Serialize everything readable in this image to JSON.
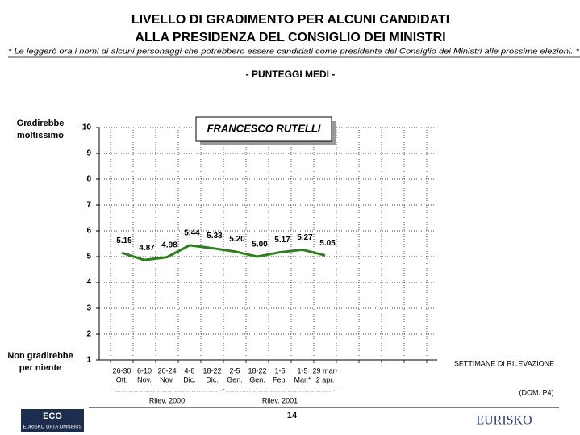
{
  "chart_data": {
    "type": "line",
    "title": [
      "LIVELLO DI GRADIMENTO PER ALCUNI CANDIDATI",
      "ALLA PRESIDENZA DEL CONSIGLIO DEI MINISTRI"
    ],
    "note": "* Le leggerò ora i nomi di alcuni personaggi che potrebbero essere candidati come presidente del Consiglio dei Ministri alle prossime elezioni. *",
    "subtitle": "- PUNTEGGI MEDI -",
    "y_top_label": [
      "Gradirebbe",
      "moltissimo"
    ],
    "y_bottom_label": [
      "Non gradirebbe",
      "per niente"
    ],
    "x_label": "SETTIMANE DI RILEVAZIONE",
    "categories": [
      [
        "26-30",
        "Ott."
      ],
      [
        "6-10",
        "Nov."
      ],
      [
        "20-24",
        "Nov."
      ],
      [
        "4-8",
        "Dic."
      ],
      [
        "18-22",
        "Dic."
      ],
      [
        "2-5",
        "Gen."
      ],
      [
        "18-22",
        "Gen."
      ],
      [
        "1-5",
        "Feb."
      ],
      [
        "1-5",
        "Mar.*"
      ],
      [
        "29 mar-",
        "2 apr."
      ]
    ],
    "groups": [
      "Rilev. 2000",
      "Rilev. 2001"
    ],
    "series": [
      {
        "name": "FRANCESCO RUTELLI",
        "color": "#2e7d1e",
        "values": [
          5.15,
          4.87,
          4.98,
          5.44,
          5.33,
          5.2,
          5.0,
          5.17,
          5.27,
          5.05
        ],
        "value_labels": [
          "5.15",
          "4.87",
          "4.98",
          "5.44",
          "5.33",
          "5.20",
          "5.00",
          "5.17",
          "5.27",
          "5.05"
        ]
      }
    ],
    "ylim": [
      1,
      10
    ],
    "yticks": [
      1,
      2,
      3,
      4,
      5,
      6,
      7,
      8,
      9,
      10
    ],
    "grid": true
  },
  "footer": {
    "source": "(DOM. P4)",
    "page": "14",
    "logo_left": "ECO",
    "logo_left_sub": "EURISKO DATA OMNIBUS",
    "logo_right": "EURISKO"
  }
}
